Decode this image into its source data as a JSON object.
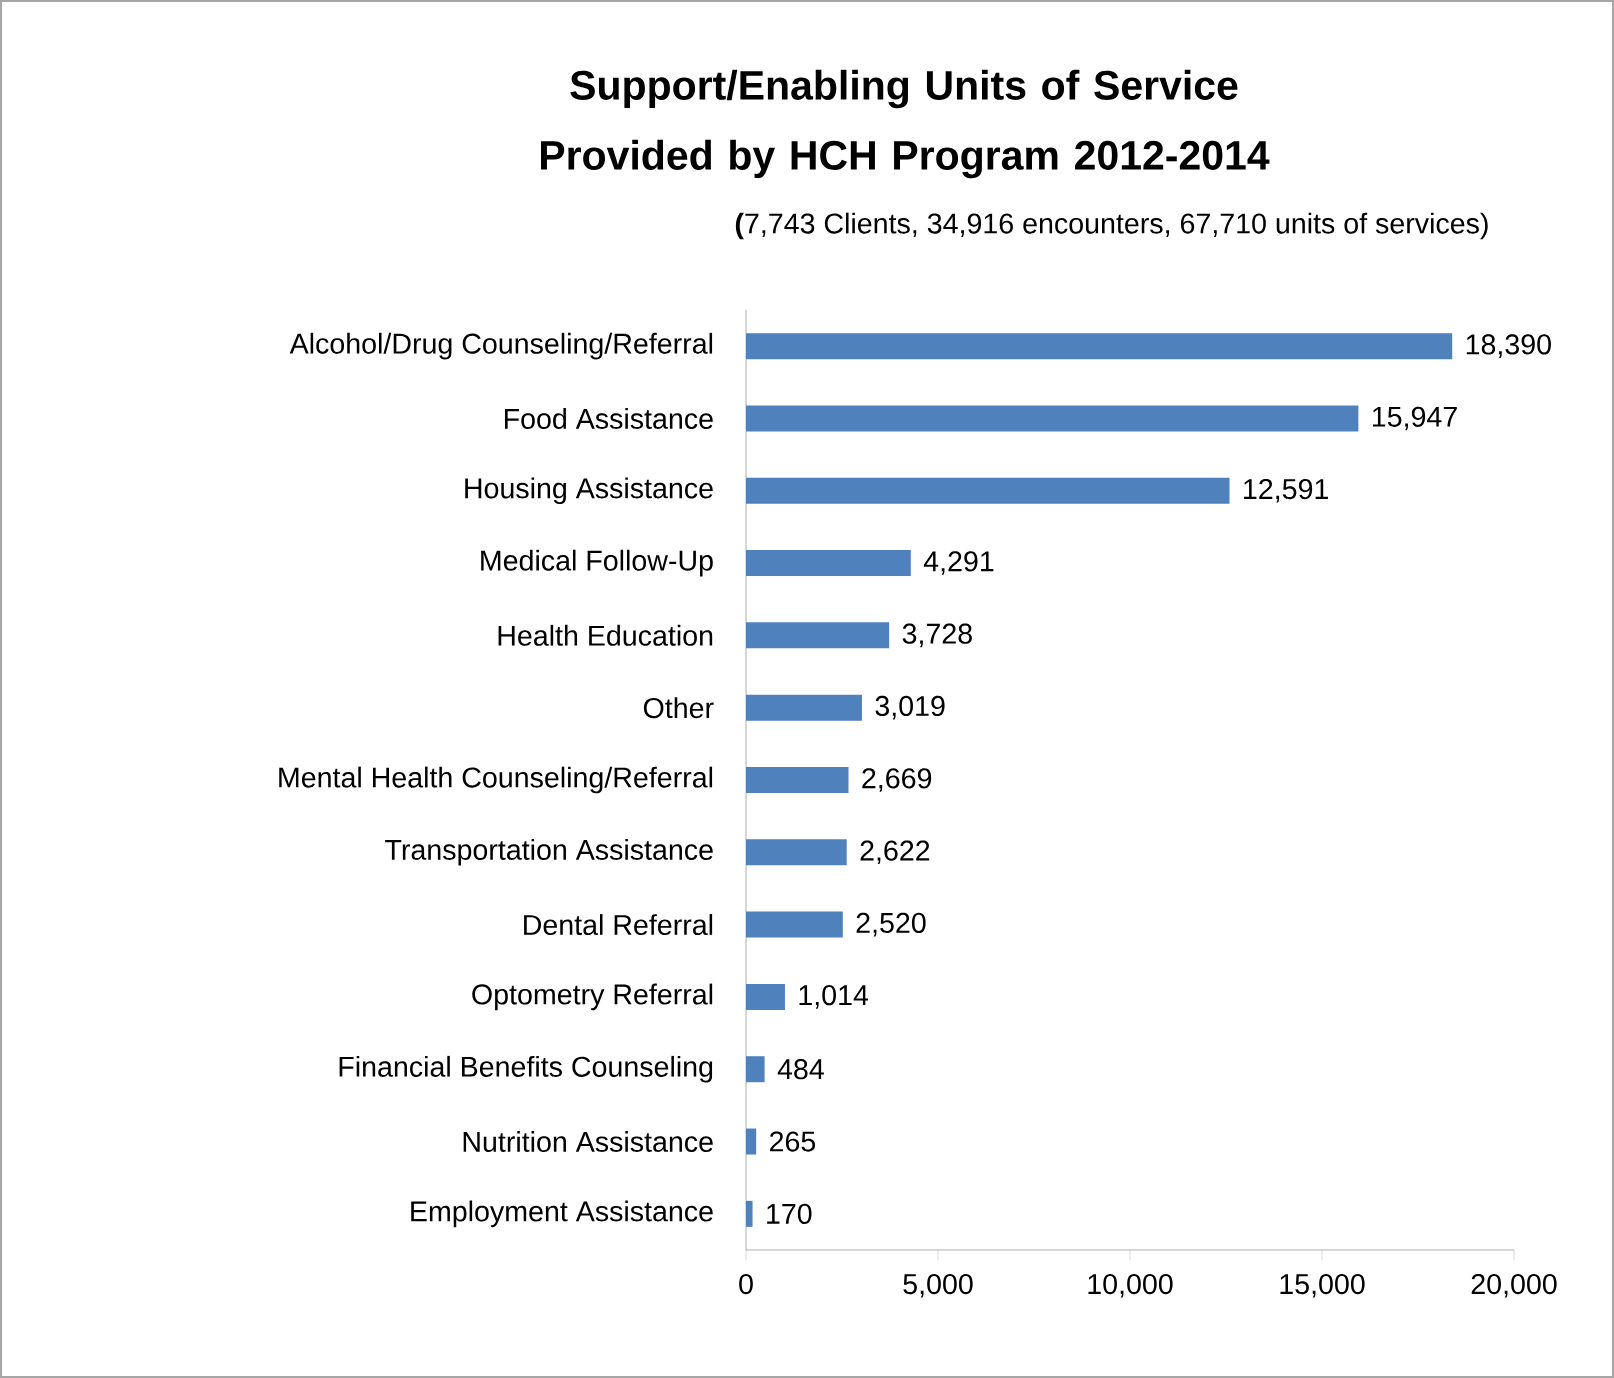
{
  "chart_data": {
    "type": "bar",
    "orientation": "horizontal",
    "title": "Support/Enabling  Units of Service Provided by HCH Program 2012-2014",
    "subtitle": "**(**7,743 Clients, 34,916 encounters, 67,710 units of services)",
    "categories": [
      "Alcohol/Drug Counseling/Referral",
      "Food Assistance",
      "Housing Assistance",
      "Medical Follow-Up",
      "Health Education",
      "Other",
      "Mental Health Counseling/Referral",
      "Transportation Assistance",
      "Dental Referral",
      "Optometry Referral",
      "Financial Benefits Counseling",
      "Nutrition Assistance",
      "Employment Assistance"
    ],
    "values": [
      18390,
      15947,
      12591,
      4291,
      3728,
      3019,
      2669,
      2622,
      2520,
      1014,
      484,
      265,
      170
    ],
    "value_labels": [
      "18,390",
      "15,947",
      "12,591",
      "4,291",
      "3,728",
      "3,019",
      "2,669",
      "2,622",
      "2,520",
      "1,014",
      "484",
      "265",
      "170"
    ],
    "color": "#4f81bd",
    "xlim": [
      0,
      20000
    ],
    "xticks": [
      0,
      {
        "value": 5000,
        "label": "5,000"
      },
      {
        "value": 10000,
        "label": "10,000"
      },
      {
        "value": 15000,
        "label": "15,000"
      },
      {
        "value": 20000,
        "label": "20,000"
      }
    ]
  }
}
